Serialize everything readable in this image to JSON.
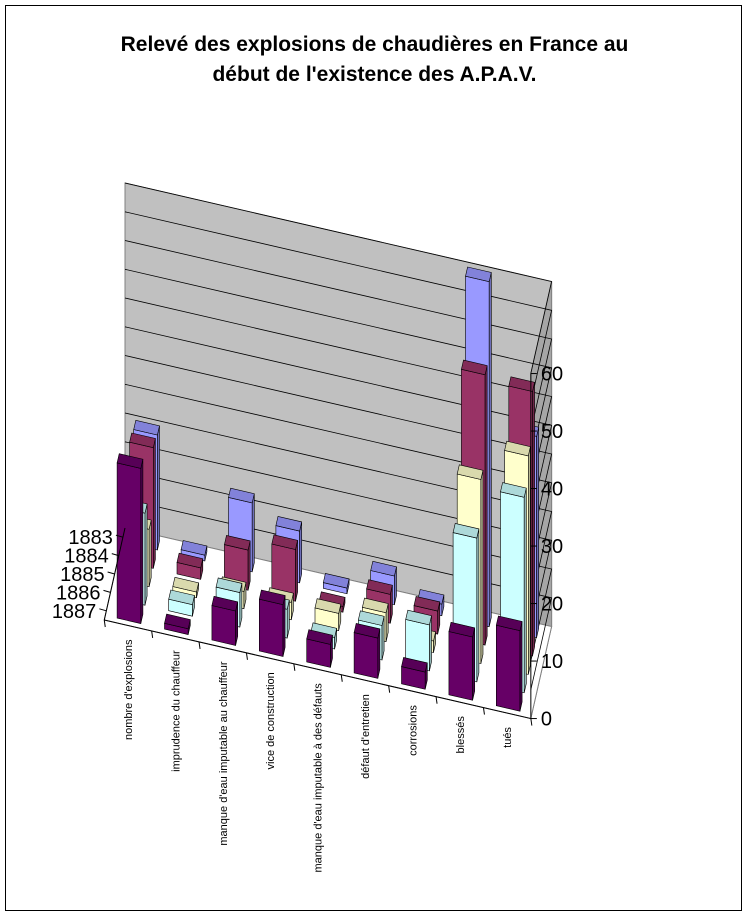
{
  "chart_data": {
    "type": "bar",
    "variant": "3d-column",
    "title_lines": [
      "Relevé des explosions de chaudières en France au",
      "début de l'existence des A.P.A.V."
    ],
    "categories": [
      "nombre d'explosions",
      "imprudence du chauffeur",
      "manque d'eau imputable au chauffeur",
      "vice de construction",
      "manque d'eau imputable à des défauts",
      "défaut d'entretien",
      "corrosions",
      "blessés",
      "tués"
    ],
    "series": [
      {
        "name": "1883",
        "color": "#9999ff",
        "values": [
          20,
          1,
          12,
          9,
          1,
          5,
          2,
          60,
          35
        ]
      },
      {
        "name": "1884",
        "color": "#993366",
        "values": [
          21,
          2,
          7,
          9,
          1,
          5,
          4,
          47,
          46
        ]
      },
      {
        "name": "1885",
        "color": "#ffffcc",
        "values": [
          10,
          1,
          3,
          3,
          3,
          5,
          2,
          32,
          38
        ]
      },
      {
        "name": "1886",
        "color": "#ccffff",
        "values": [
          16,
          2,
          6,
          5,
          2,
          6,
          8,
          25,
          34
        ]
      },
      {
        "name": "1887",
        "color": "#660066",
        "values": [
          27,
          1,
          6,
          9,
          4,
          7,
          3,
          11,
          14
        ]
      }
    ],
    "zlim": [
      0,
      60
    ],
    "z_ticks": [
      0,
      10,
      20,
      30,
      40,
      50,
      60
    ],
    "grid": true,
    "legend": "none"
  }
}
